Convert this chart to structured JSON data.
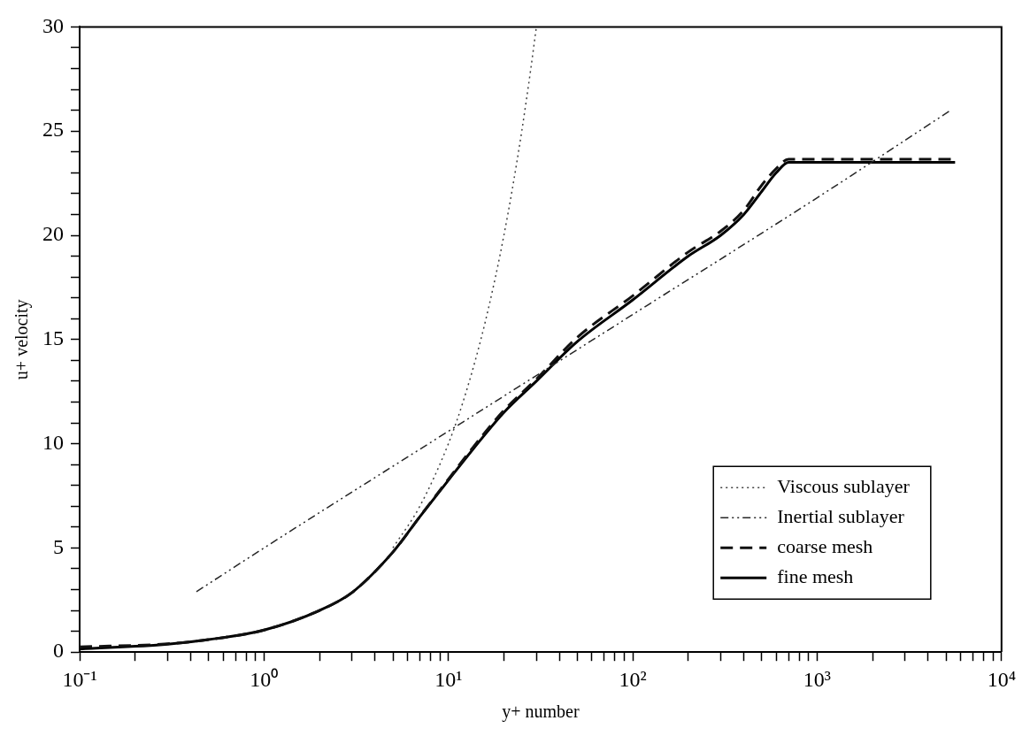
{
  "chart_data": {
    "type": "line",
    "xlabel": "y+ number",
    "ylabel": "u+ velocity",
    "log": "x",
    "xlim": [
      0.1,
      10000
    ],
    "ylim": [
      0,
      30
    ],
    "xticks": [
      {
        "value": 0.1,
        "label": "10⁻¹"
      },
      {
        "value": 0.2,
        "label": null
      },
      {
        "value": 0.3,
        "label": null
      },
      {
        "value": 0.4,
        "label": null
      },
      {
        "value": 0.5,
        "label": null
      },
      {
        "value": 0.6,
        "label": null
      },
      {
        "value": 0.7,
        "label": null
      },
      {
        "value": 0.8,
        "label": null
      },
      {
        "value": 0.9,
        "label": null
      },
      {
        "value": 1,
        "label": "10⁰"
      },
      {
        "value": 2,
        "label": null
      },
      {
        "value": 3,
        "label": null
      },
      {
        "value": 4,
        "label": null
      },
      {
        "value": 5,
        "label": null
      },
      {
        "value": 6,
        "label": null
      },
      {
        "value": 7,
        "label": null
      },
      {
        "value": 8,
        "label": null
      },
      {
        "value": 9,
        "label": null
      },
      {
        "value": 10,
        "label": "10¹"
      },
      {
        "value": 20,
        "label": null
      },
      {
        "value": 30,
        "label": null
      },
      {
        "value": 40,
        "label": null
      },
      {
        "value": 50,
        "label": null
      },
      {
        "value": 60,
        "label": null
      },
      {
        "value": 70,
        "label": null
      },
      {
        "value": 80,
        "label": null
      },
      {
        "value": 90,
        "label": null
      },
      {
        "value": 100,
        "label": "10²"
      },
      {
        "value": 200,
        "label": null
      },
      {
        "value": 300,
        "label": null
      },
      {
        "value": 400,
        "label": null
      },
      {
        "value": 500,
        "label": null
      },
      {
        "value": 600,
        "label": null
      },
      {
        "value": 700,
        "label": null
      },
      {
        "value": 800,
        "label": null
      },
      {
        "value": 900,
        "label": null
      },
      {
        "value": 1000,
        "label": "10³"
      },
      {
        "value": 2000,
        "label": null
      },
      {
        "value": 3000,
        "label": null
      },
      {
        "value": 4000,
        "label": null
      },
      {
        "value": 5000,
        "label": null
      },
      {
        "value": 6000,
        "label": null
      },
      {
        "value": 7000,
        "label": null
      },
      {
        "value": 8000,
        "label": null
      },
      {
        "value": 9000,
        "label": null
      },
      {
        "value": 10000,
        "label": "10⁴"
      }
    ],
    "yticks": [
      0,
      {
        "value": 1,
        "label": null
      },
      {
        "value": 2,
        "label": null
      },
      {
        "value": 3,
        "label": null
      },
      {
        "value": 4,
        "label": null
      },
      5,
      {
        "value": 6,
        "label": null
      },
      {
        "value": 7,
        "label": null
      },
      {
        "value": 8,
        "label": null
      },
      {
        "value": 9,
        "label": null
      },
      10,
      {
        "value": 11,
        "label": null
      },
      {
        "value": 12,
        "label": null
      },
      {
        "value": 13,
        "label": null
      },
      {
        "value": 14,
        "label": null
      },
      15,
      {
        "value": 16,
        "label": null
      },
      {
        "value": 17,
        "label": null
      },
      {
        "value": 18,
        "label": null
      },
      {
        "value": 19,
        "label": null
      },
      20,
      {
        "value": 21,
        "label": null
      },
      {
        "value": 22,
        "label": null
      },
      {
        "value": 23,
        "label": null
      },
      {
        "value": 24,
        "label": null
      },
      25,
      {
        "value": 26,
        "label": null
      },
      {
        "value": 27,
        "label": null
      },
      {
        "value": 28,
        "label": null
      },
      {
        "value": 29,
        "label": null
      },
      30
    ],
    "legend": "bottom right",
    "marker": "none",
    "series": [
      {
        "name": "Viscous sublayer",
        "color": "#404040",
        "line_style": "dotted",
        "x": [
          5,
          7,
          10,
          12,
          15,
          18,
          20,
          22,
          25,
          28,
          30
        ],
        "values": [
          5,
          7,
          10,
          12,
          15,
          18,
          20,
          22,
          25,
          28,
          30
        ]
      },
      {
        "name": "Inertial sublayer",
        "color": "#262626",
        "line_style": "dashdot",
        "x": [
          0.43,
          1,
          10,
          100,
          1000,
          5300
        ],
        "values": [
          2.9,
          5.0,
          10.6,
          16.2,
          21.8,
          26.0
        ]
      },
      {
        "name": "coarse mesh",
        "color": "#111111",
        "line_style": "dashed",
        "x": [
          0.1,
          0.3,
          0.5,
          1,
          2,
          3,
          5,
          7,
          10,
          15,
          20,
          30,
          50,
          100,
          200,
          300,
          400,
          500,
          600,
          700,
          1000,
          2000,
          5600
        ],
        "values": [
          0.25,
          0.4,
          0.6,
          1.06,
          2.0,
          2.86,
          4.8,
          6.5,
          8.3,
          10.3,
          11.6,
          13.1,
          15.1,
          17.1,
          19.2,
          20.2,
          21.2,
          22.4,
          23.2,
          23.65,
          23.65,
          23.65,
          23.65
        ]
      },
      {
        "name": "fine mesh",
        "color": "#000000",
        "line_style": "solid",
        "x": [
          0.1,
          0.3,
          0.5,
          1,
          2,
          3,
          5,
          7,
          10,
          15,
          20,
          30,
          50,
          100,
          200,
          300,
          400,
          500,
          600,
          700,
          1000,
          2000,
          5600
        ],
        "values": [
          0.15,
          0.38,
          0.6,
          1.06,
          2.0,
          2.86,
          4.8,
          6.5,
          8.25,
          10.2,
          11.5,
          13.0,
          14.9,
          16.9,
          19.0,
          20.0,
          21.0,
          22.1,
          23.0,
          23.5,
          23.5,
          23.5,
          23.5
        ]
      }
    ]
  }
}
